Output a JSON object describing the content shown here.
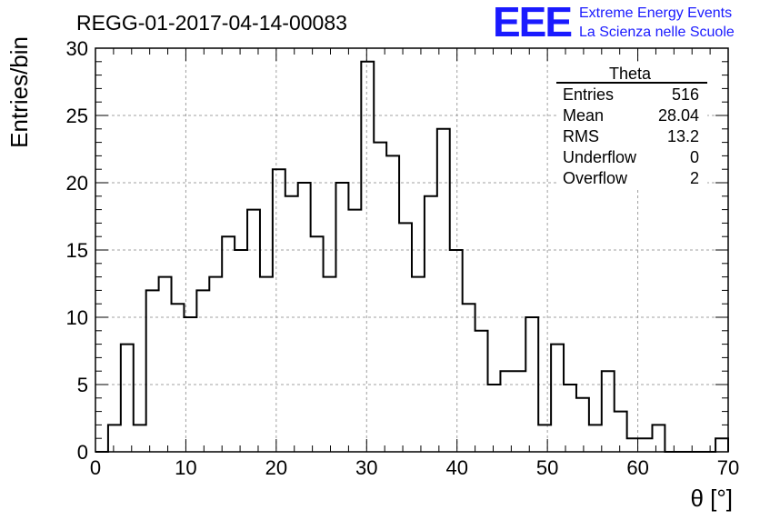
{
  "chart_data": {
    "type": "bar",
    "title": "REGG-01-2017-04-14-00083",
    "xlabel": "θ [°]",
    "ylabel": "Entries/bin",
    "xlim": [
      0,
      70
    ],
    "ylim": [
      0,
      30
    ],
    "bin_width": 1.4,
    "x_ticks": [
      0,
      10,
      20,
      30,
      40,
      50,
      60,
      70
    ],
    "y_ticks": [
      0,
      5,
      10,
      15,
      20,
      25,
      30
    ],
    "grid": true,
    "histogram_style": "step",
    "bin_edges": [
      0,
      1.4,
      2.8,
      4.2,
      5.6,
      7.0,
      8.4,
      9.8,
      11.2,
      12.6,
      14.0,
      15.4,
      16.8,
      18.2,
      19.6,
      21.0,
      22.4,
      23.8,
      25.2,
      26.6,
      28.0,
      29.4,
      30.8,
      32.2,
      33.6,
      35.0,
      36.4,
      37.8,
      39.2,
      40.6,
      42.0,
      43.4,
      44.8,
      46.2,
      47.6,
      49.0,
      50.4,
      51.8,
      53.2,
      54.6,
      56.0,
      57.4,
      58.8,
      60.2,
      61.6,
      63.0,
      64.4,
      65.8,
      67.2,
      68.6,
      70.0
    ],
    "values": [
      0,
      2,
      8,
      2,
      12,
      13,
      11,
      10,
      12,
      13,
      16,
      15,
      18,
      13,
      21,
      19,
      20,
      16,
      13,
      20,
      18,
      29,
      23,
      22,
      17,
      13,
      19,
      24,
      15,
      11,
      9,
      5,
      6,
      6,
      10,
      2,
      8,
      5,
      4,
      2,
      6,
      3,
      1,
      1,
      2,
      0,
      0,
      0,
      0,
      1
    ],
    "stats_box": {
      "title": "Theta",
      "rows": [
        {
          "label": "Entries",
          "value": "516"
        },
        {
          "label": "Mean",
          "value": "28.04"
        },
        {
          "label": "RMS",
          "value": "13.2"
        },
        {
          "label": "Underflow",
          "value": "0"
        },
        {
          "label": "Overflow",
          "value": "2"
        }
      ],
      "placement": "top-right"
    }
  },
  "logo": {
    "mark": "EEE",
    "line1": "Extreme Energy Events",
    "line2": "La Scienza nelle Scuole"
  },
  "colors": {
    "line": "#000000",
    "grid": "#a0a0a0",
    "logo": "#1a1aff"
  }
}
